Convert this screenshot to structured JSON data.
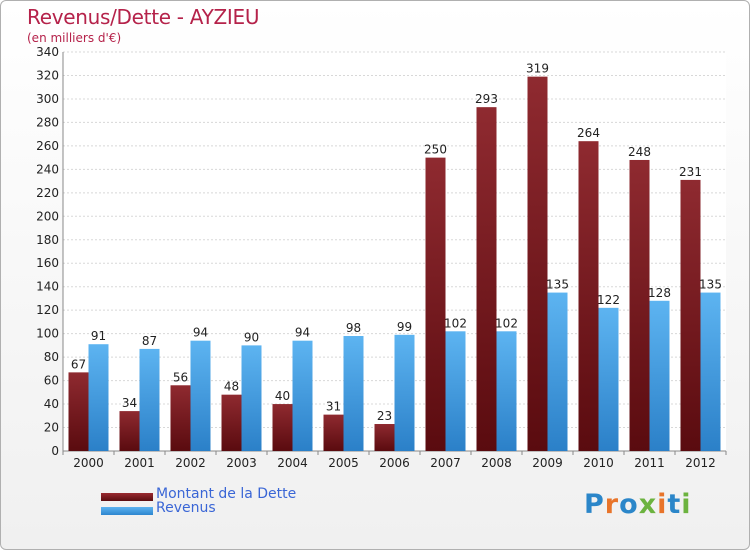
{
  "chart_data": {
    "type": "bar",
    "title": "Revenus/Dette - AYZIEU",
    "subtitle": "(en milliers d'€)",
    "categories": [
      "2000",
      "2001",
      "2002",
      "2003",
      "2004",
      "2005",
      "2006",
      "2007",
      "2008",
      "2009",
      "2010",
      "2011",
      "2012"
    ],
    "series": [
      {
        "name": "Montant de la Dette",
        "values": [
          67,
          34,
          56,
          48,
          40,
          31,
          23,
          250,
          293,
          319,
          264,
          248,
          231
        ],
        "color": "#8a1f25"
      },
      {
        "name": "Revenus",
        "values": [
          91,
          87,
          94,
          90,
          94,
          98,
          99,
          102,
          102,
          135,
          122,
          128,
          135
        ],
        "color": "#3e9ee6"
      }
    ],
    "ylim": [
      0,
      340
    ],
    "yticks": [
      0,
      20,
      40,
      60,
      80,
      100,
      120,
      140,
      160,
      180,
      200,
      220,
      240,
      260,
      280,
      300,
      320,
      340
    ],
    "grid": true,
    "legend_position": "bottom-left"
  },
  "logo": {
    "text": "Proxiti"
  }
}
